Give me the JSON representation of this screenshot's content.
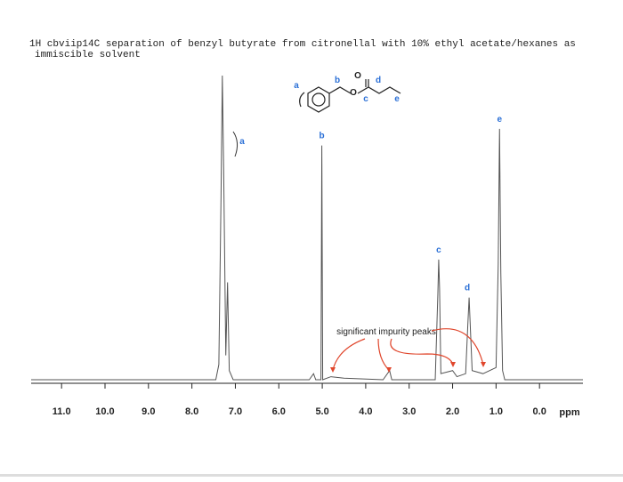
{
  "chart_data": {
    "type": "line",
    "title": [
      "1H cbviip14C separation of benzyl butyrate from citronellal with 10% ethyl acetate/hexanes as",
      "immiscible solvent"
    ],
    "x_label": "ppm",
    "x": [
      11.7,
      7.45,
      7.38,
      7.33,
      7.3,
      7.27,
      7.22,
      7.18,
      7.14,
      7.05,
      5.3,
      5.2,
      5.15,
      5.03,
      5.01,
      4.99,
      4.8,
      4.5,
      3.6,
      3.45,
      3.4,
      2.4,
      2.34,
      2.32,
      2.3,
      2.27,
      2.0,
      1.9,
      1.7,
      1.65,
      1.62,
      1.6,
      1.55,
      1.3,
      1.0,
      0.95,
      0.92,
      0.89,
      0.85,
      0.8,
      -1.0
    ],
    "values": [
      0,
      0,
      5,
      60,
      100,
      70,
      8,
      32,
      3,
      0,
      0,
      2,
      0,
      0,
      77,
      0,
      1,
      0.5,
      0,
      3,
      0,
      0,
      28,
      39.5,
      30,
      2,
      3,
      1,
      2,
      18,
      27,
      20,
      3,
      2,
      4,
      38,
      82.5,
      35,
      3,
      0,
      0
    ],
    "color": "#555555",
    "xlim": [
      11.7,
      -1.0
    ],
    "ylim": [
      0,
      100
    ],
    "xticks": [
      {
        "value": 11,
        "label": "11.0"
      },
      {
        "value": 10,
        "label": "10.0"
      },
      {
        "value": 9,
        "label": "9.0"
      },
      {
        "value": 8,
        "label": "8.0"
      },
      {
        "value": 7,
        "label": "7.0"
      },
      {
        "value": 6,
        "label": "6.0"
      },
      {
        "value": 5,
        "label": "5.0"
      },
      {
        "value": 4,
        "label": "4.0"
      },
      {
        "value": 3,
        "label": "3.0"
      },
      {
        "value": 2,
        "label": "2.0"
      },
      {
        "value": 1,
        "label": "1.0"
      },
      {
        "value": 0,
        "label": "0.0"
      }
    ],
    "peak_labels": [
      {
        "label": "a"
      },
      {
        "label": "b",
        "x": 5.01
      },
      {
        "label": "c",
        "x": 2.32
      },
      {
        "label": "d",
        "x": 1.62
      },
      {
        "label": "e",
        "x": 0.92
      }
    ],
    "structure_labels": [
      "a",
      "b",
      "O",
      "O",
      "c",
      "d",
      "e"
    ],
    "annotation": "significant impurity peaks",
    "label_color": "#2a6fd6",
    "arrow_color": "#e0462c"
  }
}
